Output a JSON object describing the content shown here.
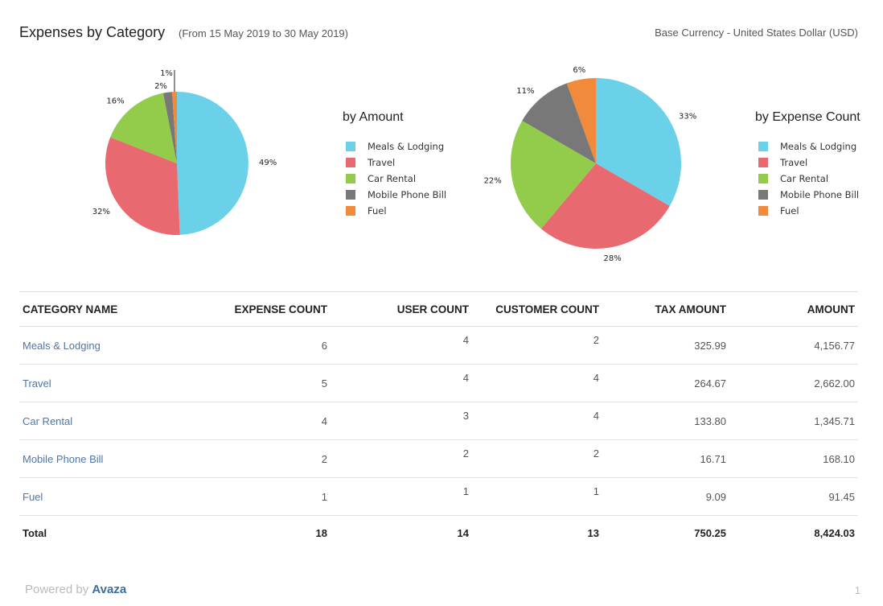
{
  "header": {
    "title": "Expenses by Category",
    "date_range": "(From 15 May 2019 to 30 May 2019)",
    "currency": "Base Currency - United States Dollar (USD)"
  },
  "colors": {
    "Meals & Lodging": "#6bd1e8",
    "Travel": "#e8696f",
    "Car Rental": "#93cc4a",
    "Mobile Phone Bill": "#787878",
    "Fuel": "#f18a3b"
  },
  "chart_data": [
    {
      "type": "pie",
      "title": "by Amount",
      "categories": [
        "Meals & Lodging",
        "Travel",
        "Car Rental",
        "Mobile Phone Bill",
        "Fuel"
      ],
      "values": [
        4156.77,
        2662.0,
        1345.71,
        168.1,
        91.45
      ],
      "labels": [
        "49%",
        "32%",
        "16%",
        "2%",
        "1%"
      ],
      "legend": "right"
    },
    {
      "type": "pie",
      "title": "by Expense Count",
      "categories": [
        "Meals & Lodging",
        "Travel",
        "Car Rental",
        "Mobile Phone Bill",
        "Fuel"
      ],
      "values": [
        6,
        5,
        4,
        2,
        1
      ],
      "labels": [
        "33%",
        "28%",
        "22%",
        "11%",
        "6%"
      ],
      "legend": "right"
    }
  ],
  "table": {
    "headers": [
      "CATEGORY NAME",
      "EXPENSE COUNT",
      "USER COUNT",
      "CUSTOMER COUNT",
      "TAX AMOUNT",
      "AMOUNT"
    ],
    "rows": [
      [
        "Meals & Lodging",
        "6",
        "4",
        "2",
        "325.99",
        "4,156.77"
      ],
      [
        "Travel",
        "5",
        "4",
        "4",
        "264.67",
        "2,662.00"
      ],
      [
        "Car Rental",
        "4",
        "3",
        "4",
        "133.80",
        "1,345.71"
      ],
      [
        "Mobile Phone Bill",
        "2",
        "2",
        "2",
        "16.71",
        "168.10"
      ],
      [
        "Fuel",
        "1",
        "1",
        "1",
        "9.09",
        "91.45"
      ]
    ],
    "total": [
      "Total",
      "18",
      "14",
      "13",
      "750.25",
      "8,424.03"
    ]
  },
  "footer": {
    "powered_by": "Powered by",
    "brand": "Avaza",
    "page_number": "1"
  }
}
